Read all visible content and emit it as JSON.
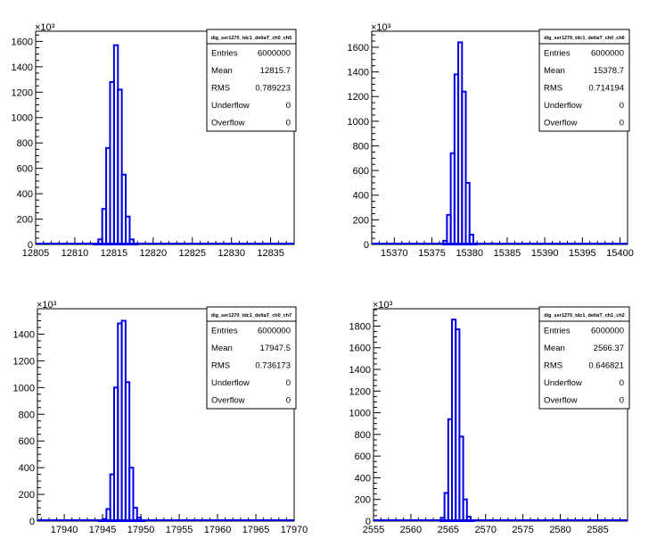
{
  "chart_data": [
    {
      "type": "bar",
      "exponent_label": "×10³",
      "xlim": [
        12805,
        12838
      ],
      "ylim": [
        0,
        1680
      ],
      "x_ticks": [
        12805,
        12810,
        12815,
        12820,
        12825,
        12830,
        12835
      ],
      "y_ticks": [
        0,
        200,
        400,
        600,
        800,
        1000,
        1200,
        1400,
        1600
      ],
      "bin_width": 0.5,
      "bins_x": [
        12812.5,
        12813,
        12813.5,
        12814,
        12814.5,
        12815,
        12815.5,
        12816,
        12816.5,
        12817,
        12817.5
      ],
      "bins_y": [
        3,
        40,
        280,
        760,
        1280,
        1570,
        1220,
        550,
        220,
        40,
        3
      ],
      "stats": {
        "title": "dig_ser1270_tdc1_deltaT_ch0_ch5",
        "rows": [
          {
            "label": "Entries",
            "value": "6000000"
          },
          {
            "label": "Mean",
            "value": "12815.7"
          },
          {
            "label": "RMS",
            "value": "0.789223"
          },
          {
            "label": "Underflow",
            "value": "0"
          },
          {
            "label": "Overflow",
            "value": "0"
          }
        ]
      }
    },
    {
      "type": "bar",
      "exponent_label": "×10³",
      "xlim": [
        15367,
        15401
      ],
      "ylim": [
        0,
        1730
      ],
      "x_ticks": [
        15370,
        15375,
        15380,
        15385,
        15390,
        15395,
        15400
      ],
      "y_ticks": [
        0,
        200,
        400,
        600,
        800,
        1000,
        1200,
        1400,
        1600
      ],
      "bin_width": 0.5,
      "bins_x": [
        15376.5,
        15377,
        15377.5,
        15378,
        15378.5,
        15379,
        15379.5,
        15380,
        15380.5
      ],
      "bins_y": [
        30,
        240,
        740,
        1380,
        1640,
        1240,
        500,
        80,
        8
      ],
      "stats": {
        "title": "dig_ser1270_tdc1_deltaT_ch0_ch6",
        "rows": [
          {
            "label": "Entries",
            "value": "6000000"
          },
          {
            "label": "Mean",
            "value": "15378.7"
          },
          {
            "label": "RMS",
            "value": "0.714194"
          },
          {
            "label": "Underflow",
            "value": "0"
          },
          {
            "label": "Overflow",
            "value": "0"
          }
        ]
      }
    },
    {
      "type": "bar",
      "exponent_label": "×10³",
      "xlim": [
        17936.5,
        17970
      ],
      "ylim": [
        0,
        1590
      ],
      "x_ticks": [
        17940,
        17945,
        17950,
        17955,
        17960,
        17965,
        17970
      ],
      "y_ticks": [
        0,
        200,
        400,
        600,
        800,
        1000,
        1200,
        1400
      ],
      "bin_width": 0.5,
      "bins_x": [
        17944.5,
        17945,
        17945.5,
        17946,
        17946.5,
        17947,
        17947.5,
        17948,
        17948.5,
        17949,
        17949.5,
        17950
      ],
      "bins_y": [
        5,
        15,
        90,
        350,
        1000,
        1480,
        1500,
        1040,
        400,
        100,
        25,
        5
      ],
      "stats": {
        "title": "dig_ser1270_tdc1_deltaT_ch0_ch7",
        "rows": [
          {
            "label": "Entries",
            "value": "6000000"
          },
          {
            "label": "Mean",
            "value": "17947.5"
          },
          {
            "label": "RMS",
            "value": "0.736173"
          },
          {
            "label": "Underflow",
            "value": "0"
          },
          {
            "label": "Overflow",
            "value": "0"
          }
        ]
      }
    },
    {
      "type": "bar",
      "exponent_label": "×10³",
      "xlim": [
        2555,
        2589
      ],
      "ylim": [
        0,
        1960
      ],
      "x_ticks": [
        2555,
        2560,
        2565,
        2570,
        2575,
        2580,
        2585
      ],
      "y_ticks": [
        0,
        200,
        400,
        600,
        800,
        1000,
        1200,
        1400,
        1600,
        1800
      ],
      "bin_width": 0.5,
      "bins_x": [
        2564,
        2564.5,
        2565,
        2565.5,
        2566,
        2566.5,
        2567,
        2567.5,
        2568
      ],
      "bins_y": [
        30,
        260,
        940,
        1860,
        1770,
        780,
        200,
        40,
        3
      ],
      "stats": {
        "title": "dig_ser1270_tdc1_deltaT_ch1_ch2",
        "rows": [
          {
            "label": "Entries",
            "value": "6000000"
          },
          {
            "label": "Mean",
            "value": "2566.37"
          },
          {
            "label": "RMS",
            "value": "0.646821"
          },
          {
            "label": "Underflow",
            "value": "0"
          },
          {
            "label": "Overflow",
            "value": "0"
          }
        ]
      }
    }
  ],
  "colors": {
    "histogram_line": "#0000e6",
    "axis": "#000000",
    "background": "#ffffff"
  }
}
